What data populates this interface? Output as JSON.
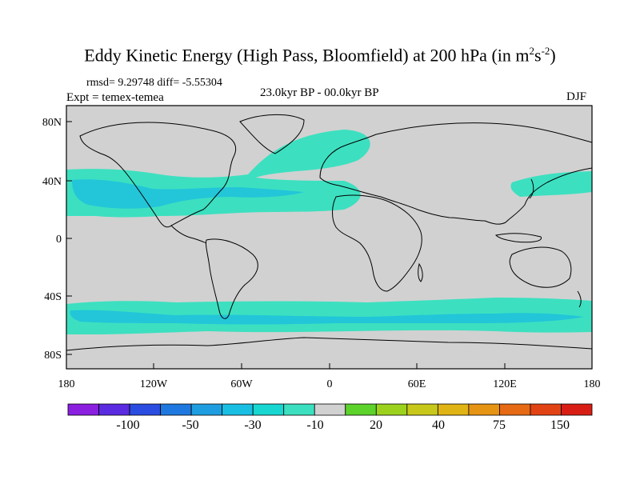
{
  "title": {
    "main": "Eddy Kinetic Energy (High Pass, Bloomfield) at 200 hPa (in m",
    "sup1": "2",
    "mid": "s",
    "sup2": "-2",
    "end": ")"
  },
  "stats": "rmsd= 9.29748 diff= -5.55304",
  "experiment": "Expt = temex-temea",
  "period": "23.0kyr BP - 00.0kyr BP",
  "season": "DJF",
  "colors": {
    "land_bg": "#d1d1d1",
    "anomaly_light": "#3ce0c0",
    "anomaly_mid": "#22c6d8",
    "coast": "#000000"
  },
  "lat_labels": [
    "80N",
    "40N",
    "0",
    "40S",
    "80S"
  ],
  "lon_labels": [
    "180",
    "120W",
    "60W",
    "0",
    "60E",
    "120E",
    "180"
  ],
  "colorbar": {
    "labels": [
      "-100",
      "-50",
      "-30",
      "-10",
      "20",
      "40",
      "75",
      "150"
    ],
    "colors": [
      "#8a1fe0",
      "#5a2be0",
      "#2a4ce0",
      "#1e78e0",
      "#1e9ee0",
      "#19bfe3",
      "#18d6d0",
      "#3ce0c0",
      "#d1d1d1",
      "#5cd22a",
      "#9cd21e",
      "#c8c81a",
      "#e0b414",
      "#e69414",
      "#e66a14",
      "#e24314",
      "#d81e14"
    ]
  }
}
